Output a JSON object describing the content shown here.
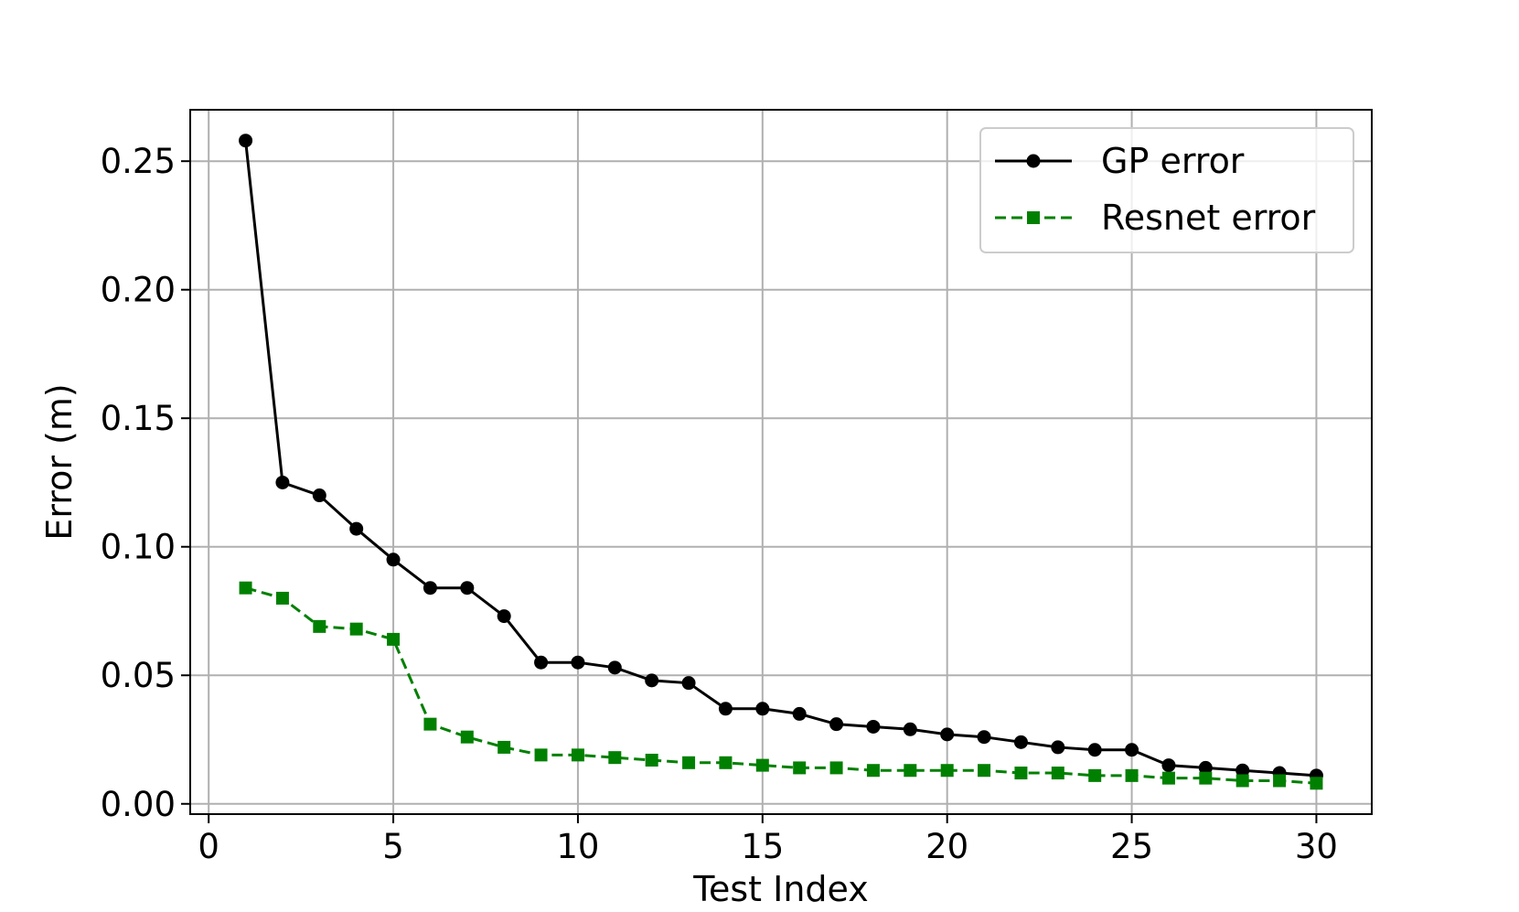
{
  "chart_data": {
    "type": "line",
    "title": "",
    "xlabel": "Test Index",
    "ylabel": "Error (m)",
    "xlim": [
      -0.5,
      31.5
    ],
    "ylim": [
      -0.004,
      0.27
    ],
    "xticks": [
      0,
      5,
      10,
      15,
      20,
      25,
      30
    ],
    "yticks": [
      0.0,
      0.05,
      0.1,
      0.15,
      0.2,
      0.25
    ],
    "xtick_labels": [
      "0",
      "5",
      "10",
      "15",
      "20",
      "25",
      "30"
    ],
    "ytick_labels": [
      "0.00",
      "0.05",
      "0.10",
      "0.15",
      "0.20",
      "0.25"
    ],
    "grid": true,
    "legend_position": "top-right",
    "x": [
      1,
      2,
      3,
      4,
      5,
      6,
      7,
      8,
      9,
      10,
      11,
      12,
      13,
      14,
      15,
      16,
      17,
      18,
      19,
      20,
      21,
      22,
      23,
      24,
      25,
      26,
      27,
      28,
      29,
      30
    ],
    "series": [
      {
        "name": "GP error",
        "color": "#000000",
        "marker": "circle",
        "linestyle": "solid",
        "values": [
          0.258,
          0.125,
          0.12,
          0.107,
          0.095,
          0.084,
          0.084,
          0.073,
          0.055,
          0.055,
          0.053,
          0.048,
          0.047,
          0.037,
          0.037,
          0.035,
          0.031,
          0.03,
          0.029,
          0.027,
          0.026,
          0.024,
          0.022,
          0.021,
          0.021,
          0.015,
          0.014,
          0.013,
          0.012,
          0.011
        ]
      },
      {
        "name": "Resnet error",
        "color": "#008000",
        "marker": "square",
        "linestyle": "dashed",
        "values": [
          0.084,
          0.08,
          0.069,
          0.068,
          0.064,
          0.031,
          0.026,
          0.022,
          0.019,
          0.019,
          0.018,
          0.017,
          0.016,
          0.016,
          0.015,
          0.014,
          0.014,
          0.013,
          0.013,
          0.013,
          0.013,
          0.012,
          0.012,
          0.011,
          0.011,
          0.01,
          0.01,
          0.009,
          0.009,
          0.008
        ]
      }
    ]
  }
}
